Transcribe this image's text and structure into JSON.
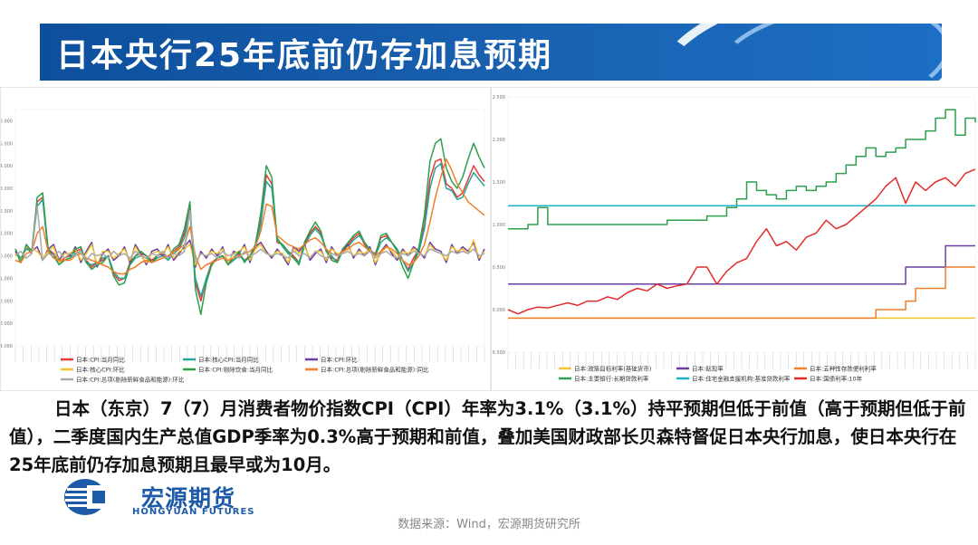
{
  "title": "日本央行25年底前仍存加息预期",
  "body_text": "日本（东京）7（7）月消费者物价指数CPI（CPI）年率为3.1%（3.1%）持平预期但低于前值（高于预期但低于前值），二季度国内生产总值GDP季率为0.3%高于预期和前值，叠加美国财政部长贝森特督促日本央行加息，使日本央行在25年底前仍存加息预期且最早或为10月。",
  "logo": {
    "cn": "宏源期货",
    "en": "HONGYUAN FUTURES"
  },
  "source": "数据来源：Wind，宏源期货研究所",
  "chart_data": [
    {
      "type": "line",
      "ytick_labels": [
        "6.000",
        "5.000",
        "4.000",
        "3.000",
        "2.000",
        "1.000",
        "0.000",
        "-1.000",
        "-2.000",
        "-3.000",
        "-4.000"
      ],
      "ylim": [
        -4,
        6.5
      ],
      "legend_placement": "bottom",
      "series": [
        {
          "name": "日本:CPI:当月同比",
          "color": "#e53935",
          "values": [
            0.3,
            -0.2,
            0.4,
            0.1,
            2.4,
            2.6,
            0.3,
            0.1,
            -0.3,
            -0.1,
            0.0,
            0.2,
            0.3,
            -0.2,
            -0.5,
            -0.3,
            -0.2,
            0.0,
            -0.8,
            -1.1,
            -1.0,
            -0.3,
            0.0,
            0.1,
            0.0,
            -0.2,
            0.0,
            0.1,
            -0.1,
            0.2,
            0.4,
            1.0,
            2.1,
            -1.2,
            -2.0,
            -1.0,
            -0.3,
            -0.1,
            0.0,
            -0.3,
            -0.1,
            0.1,
            -0.2,
            0.0,
            0.4,
            1.6,
            3.6,
            3.2,
            0.6,
            0.5,
            0.2,
            0.0,
            -0.3,
            0.5,
            1.0,
            1.3,
            1.0,
            0.2,
            -0.1,
            -0.2,
            0.3,
            0.5,
            0.8,
            1.0,
            0.5,
            0.2,
            0.1,
            0.8,
            0.9,
            0.6,
            0.3,
            -0.2,
            -0.6,
            -0.1,
            0.3,
            1.4,
            3.4,
            4.2,
            4.3,
            3.2,
            3.0,
            2.6,
            2.8,
            3.4,
            4.0,
            3.6,
            3.3
          ]
        },
        {
          "name": "日本:核心CPI:当月同比",
          "color": "#26a69a",
          "values": [
            0.2,
            -0.1,
            0.3,
            0.2,
            2.2,
            2.5,
            0.2,
            0.0,
            -0.2,
            -0.2,
            -0.1,
            0.1,
            0.2,
            -0.3,
            -0.4,
            -0.3,
            -0.1,
            0.0,
            -0.7,
            -1.0,
            -1.0,
            -0.4,
            -0.1,
            0.0,
            -0.1,
            -0.3,
            -0.1,
            0.0,
            -0.2,
            0.1,
            0.3,
            0.8,
            2.0,
            -1.0,
            -1.8,
            -1.0,
            -0.4,
            -0.1,
            0.0,
            -0.4,
            -0.2,
            0.0,
            -0.2,
            -0.1,
            0.3,
            1.4,
            3.3,
            3.0,
            0.8,
            0.4,
            0.1,
            -0.1,
            -0.3,
            0.4,
            0.9,
            1.2,
            0.9,
            0.3,
            0.0,
            -0.3,
            0.2,
            0.4,
            0.7,
            0.9,
            0.6,
            0.3,
            0.0,
            0.6,
            0.8,
            0.6,
            0.3,
            -0.2,
            -0.7,
            -0.3,
            0.2,
            1.2,
            3.0,
            3.9,
            4.1,
            3.0,
            2.9,
            2.5,
            2.6,
            3.2,
            3.7,
            3.4,
            3.1
          ]
        },
        {
          "name": "日本:CPI:环比",
          "color": "#6a3fa0",
          "values": [
            0.2,
            -0.3,
            0.5,
            0.2,
            0.4,
            -0.2,
            0.3,
            0.5,
            -0.2,
            0.2,
            0.0,
            0.4,
            -0.3,
            0.2,
            0.6,
            -0.5,
            0.1,
            0.3,
            -0.2,
            0.0,
            0.4,
            -0.3,
            0.5,
            0.1,
            -0.4,
            0.2,
            0.3,
            0.0,
            0.5,
            -0.2,
            0.1,
            0.4,
            0.7,
            -0.5,
            0.2,
            -0.1,
            0.3,
            0.0,
            0.4,
            -0.4,
            0.2,
            0.1,
            0.5,
            -0.3,
            0.4,
            0.6,
            0.2,
            -0.1,
            0.3,
            0.0,
            -0.4,
            0.4,
            0.2,
            0.5,
            -0.2,
            0.1,
            0.3,
            -0.3,
            0.4,
            0.0,
            0.2,
            0.5,
            -0.1,
            0.3,
            0.0,
            0.4,
            -0.4,
            0.2,
            0.5,
            0.1,
            -0.2,
            0.3,
            0.0,
            0.4,
            0.2,
            -0.1,
            0.6,
            0.3,
            0.2,
            -0.3,
            0.5,
            0.1,
            0.4,
            0.2,
            0.6,
            -0.2,
            0.3
          ]
        },
        {
          "name": "日本:核心CPI:环比",
          "color": "#f4c430",
          "values": [
            0.1,
            -0.2,
            0.4,
            0.3,
            0.2,
            -0.1,
            0.2,
            0.4,
            -0.3,
            0.1,
            0.1,
            0.3,
            -0.2,
            0.1,
            0.5,
            -0.4,
            0.2,
            0.2,
            -0.1,
            0.1,
            0.3,
            -0.2,
            0.4,
            0.0,
            -0.3,
            0.1,
            0.2,
            0.1,
            0.4,
            -0.1,
            0.2,
            0.3,
            0.5,
            -0.4,
            0.1,
            0.0,
            0.2,
            0.1,
            0.3,
            -0.3,
            0.1,
            0.2,
            0.4,
            -0.2,
            0.3,
            0.5,
            0.1,
            0.0,
            0.2,
            0.1,
            -0.3,
            0.3,
            0.1,
            0.4,
            -0.1,
            0.2,
            0.2,
            -0.2,
            0.3,
            0.1,
            0.1,
            0.4,
            0.0,
            0.2,
            0.1,
            0.3,
            -0.3,
            0.1,
            0.4,
            0.2,
            -0.1,
            0.2,
            0.1,
            0.3,
            0.1,
            0.0,
            0.5,
            0.2,
            0.1,
            -0.2,
            0.4,
            0.2,
            0.3,
            0.1,
            0.7,
            -0.1,
            0.2
          ]
        },
        {
          "name": "日本:CPI:剔除饮食:当月同比",
          "color": "#2e9e4f",
          "values": [
            0.3,
            -0.3,
            0.5,
            0.2,
            2.6,
            2.8,
            0.3,
            0.0,
            -0.4,
            -0.2,
            -0.1,
            0.3,
            0.4,
            -0.3,
            -0.6,
            -0.4,
            -0.3,
            0.0,
            -0.9,
            -1.3,
            -1.2,
            -0.4,
            0.0,
            0.2,
            0.0,
            -0.3,
            0.0,
            0.2,
            -0.1,
            0.3,
            0.5,
            1.2,
            2.4,
            -1.5,
            -2.6,
            -1.2,
            -0.4,
            -0.1,
            0.0,
            -0.4,
            -0.1,
            0.2,
            -0.3,
            0.0,
            0.5,
            1.9,
            4.0,
            3.5,
            0.7,
            0.5,
            0.2,
            -0.1,
            -0.4,
            0.6,
            1.1,
            1.5,
            1.1,
            0.2,
            -0.2,
            -0.3,
            0.3,
            0.6,
            0.9,
            1.1,
            0.6,
            0.2,
            0.0,
            0.9,
            1.0,
            0.6,
            0.2,
            -0.5,
            -1.0,
            -0.3,
            0.4,
            1.8,
            4.2,
            5.0,
            5.2,
            3.9,
            3.3,
            3.0,
            3.5,
            4.3,
            5.0,
            4.4,
            3.9
          ]
        },
        {
          "name": "日本:CPI:总项(剔除新鲜食品和能源):同比",
          "color": "#ef7f2a",
          "values": [
            -0.2,
            -0.3,
            0.1,
            0.2,
            1.0,
            1.3,
            0.2,
            -0.1,
            -0.2,
            -0.2,
            -0.2,
            0.0,
            0.1,
            -0.1,
            -0.2,
            -0.3,
            -0.4,
            -0.5,
            -0.7,
            -0.8,
            -0.8,
            -0.6,
            -0.5,
            -0.3,
            -0.2,
            -0.3,
            -0.2,
            -0.1,
            0.0,
            0.2,
            0.3,
            0.5,
            1.3,
            0.0,
            -0.6,
            -0.4,
            -0.3,
            -0.2,
            -0.1,
            -0.2,
            -0.1,
            0.0,
            0.1,
            0.2,
            0.4,
            1.1,
            2.3,
            2.2,
            0.9,
            0.7,
            0.5,
            0.4,
            0.3,
            0.5,
            0.7,
            0.8,
            0.6,
            0.3,
            0.1,
            0.0,
            0.2,
            0.3,
            0.5,
            0.6,
            0.4,
            0.2,
            0.0,
            0.2,
            0.4,
            0.3,
            0.1,
            -0.2,
            -0.4,
            -0.3,
            0.0,
            0.5,
            1.5,
            2.6,
            3.5,
            4.3,
            3.8,
            3.2,
            2.8,
            2.4,
            2.2,
            2.0,
            1.8
          ]
        },
        {
          "name": "日本:CPI:总项(剔除新鲜食品和能源):环比",
          "color": "#aaaaaa",
          "values": [
            0.0,
            0.2,
            -0.1,
            0.1,
            2.2,
            -0.2,
            0.1,
            0.0,
            0.2,
            -0.1,
            0.1,
            0.0,
            0.2,
            -0.2,
            0.1,
            0.0,
            0.1,
            -0.1,
            0.2,
            0.0,
            0.1,
            -0.1,
            0.2,
            0.0,
            -0.1,
            0.1,
            0.0,
            0.2,
            -0.1,
            0.1,
            0.0,
            0.2,
            2.0,
            -0.3,
            0.1,
            0.0,
            0.1,
            -0.1,
            0.2,
            0.0,
            0.1,
            -0.1,
            0.2,
            0.0,
            0.1,
            0.3,
            0.1,
            0.0,
            0.1,
            0.0,
            -0.1,
            0.2,
            0.0,
            0.1,
            -0.1,
            0.2,
            0.0,
            -0.1,
            0.1,
            0.0,
            0.1,
            0.2,
            0.0,
            0.1,
            0.0,
            0.2,
            -0.1,
            0.1,
            0.2,
            0.0,
            -0.1,
            0.1,
            0.0,
            0.2,
            0.1,
            0.0,
            0.3,
            0.2,
            0.1,
            0.0,
            0.2,
            0.1,
            0.2,
            0.1,
            0.3,
            0.0,
            0.1
          ]
        }
      ]
    },
    {
      "type": "line",
      "ytick_labels": [
        "2.500",
        "2.000",
        "1.500",
        "1.000",
        "0.500",
        "0.000",
        "-0.500"
      ],
      "ylim": [
        -0.5,
        2.5
      ],
      "legend_placement": "bottom",
      "series": [
        {
          "name": "日本:政策目标利率(基础货币)",
          "color": "#f4c430",
          "values": [
            -0.1,
            -0.1,
            -0.1,
            -0.1,
            -0.1,
            -0.1,
            -0.1,
            -0.1,
            -0.1,
            -0.1,
            -0.1,
            -0.1,
            -0.1,
            -0.1,
            -0.1,
            -0.1,
            -0.1,
            -0.1,
            -0.1,
            -0.1,
            -0.1,
            -0.1,
            -0.1,
            -0.1,
            -0.1,
            -0.1,
            -0.1,
            -0.1,
            -0.1,
            -0.1,
            -0.1,
            -0.1,
            -0.1,
            -0.1,
            -0.1,
            -0.1,
            -0.1,
            -0.1,
            -0.1,
            -0.1,
            -0.1,
            -0.1,
            -0.1,
            -0.1,
            -0.1,
            -0.1,
            -0.1,
            -0.1
          ]
        },
        {
          "name": "日本:贴现率",
          "color": "#6a3fa0",
          "values": [
            0.3,
            0.3,
            0.3,
            0.3,
            0.3,
            0.3,
            0.3,
            0.3,
            0.3,
            0.3,
            0.3,
            0.3,
            0.3,
            0.3,
            0.3,
            0.3,
            0.3,
            0.3,
            0.3,
            0.3,
            0.3,
            0.3,
            0.3,
            0.3,
            0.3,
            0.3,
            0.3,
            0.3,
            0.3,
            0.3,
            0.3,
            0.3,
            0.3,
            0.3,
            0.3,
            0.3,
            0.3,
            0.3,
            0.3,
            0.3,
            0.5,
            0.5,
            0.5,
            0.5,
            0.75,
            0.75,
            0.75,
            0.75
          ]
        },
        {
          "name": "日本:五种性存款便利利率",
          "color": "#ef7f2a",
          "values": [
            -0.1,
            -0.1,
            -0.1,
            -0.1,
            -0.1,
            -0.1,
            -0.1,
            -0.1,
            -0.1,
            -0.1,
            -0.1,
            -0.1,
            -0.1,
            -0.1,
            -0.1,
            -0.1,
            -0.1,
            -0.1,
            -0.1,
            -0.1,
            -0.1,
            -0.1,
            -0.1,
            -0.1,
            -0.1,
            -0.1,
            -0.1,
            -0.1,
            -0.1,
            -0.1,
            -0.1,
            -0.1,
            -0.1,
            -0.1,
            -0.1,
            -0.1,
            -0.1,
            0.0,
            0.0,
            0.0,
            0.1,
            0.25,
            0.25,
            0.25,
            0.5,
            0.5,
            0.5,
            0.5
          ]
        },
        {
          "name": "日本:主要银行:长期贷款利率",
          "color": "#2e9e4f",
          "values": [
            0.95,
            0.95,
            1.0,
            1.2,
            1.0,
            1.0,
            1.0,
            1.0,
            1.0,
            1.0,
            1.0,
            1.0,
            1.0,
            1.0,
            1.0,
            1.0,
            1.05,
            1.05,
            1.05,
            1.05,
            1.1,
            1.1,
            1.2,
            1.3,
            1.5,
            1.4,
            1.35,
            1.3,
            1.4,
            1.45,
            1.4,
            1.45,
            1.5,
            1.6,
            1.7,
            1.8,
            1.9,
            1.8,
            1.85,
            1.9,
            2.0,
            2.0,
            2.1,
            2.25,
            2.35,
            2.05,
            2.25,
            2.2
          ]
        },
        {
          "name": "日本:住宅金融支援机构:基准贷款利率",
          "color": "#1eb4c8",
          "values": [
            1.22,
            1.22,
            1.22,
            1.22,
            1.22,
            1.22,
            1.22,
            1.22,
            1.22,
            1.22,
            1.22,
            1.22,
            1.22,
            1.22,
            1.22,
            1.22,
            1.22,
            1.22,
            1.22,
            1.22,
            1.22,
            1.22,
            1.22,
            1.22,
            1.22,
            1.22,
            1.22,
            1.22,
            1.22,
            1.22,
            1.22,
            1.22,
            1.22,
            1.22,
            1.22,
            1.22,
            1.22,
            1.22,
            1.22,
            1.22,
            1.22,
            1.22,
            1.22,
            1.22,
            1.22,
            1.22,
            1.22,
            1.22
          ]
        },
        {
          "name": "日本:国债利率:10年",
          "color": "#e52b2b",
          "values": [
            0.0,
            -0.05,
            0.0,
            0.03,
            0.02,
            0.05,
            0.08,
            0.05,
            0.1,
            0.1,
            0.15,
            0.12,
            0.2,
            0.25,
            0.22,
            0.3,
            0.25,
            0.28,
            0.3,
            0.5,
            0.5,
            0.3,
            0.45,
            0.55,
            0.6,
            0.8,
            0.95,
            0.75,
            0.8,
            0.7,
            0.85,
            0.9,
            1.05,
            0.95,
            1.0,
            1.1,
            1.2,
            1.3,
            1.45,
            1.55,
            1.25,
            1.5,
            1.4,
            1.5,
            1.55,
            1.45,
            1.6,
            1.65
          ]
        }
      ]
    }
  ]
}
